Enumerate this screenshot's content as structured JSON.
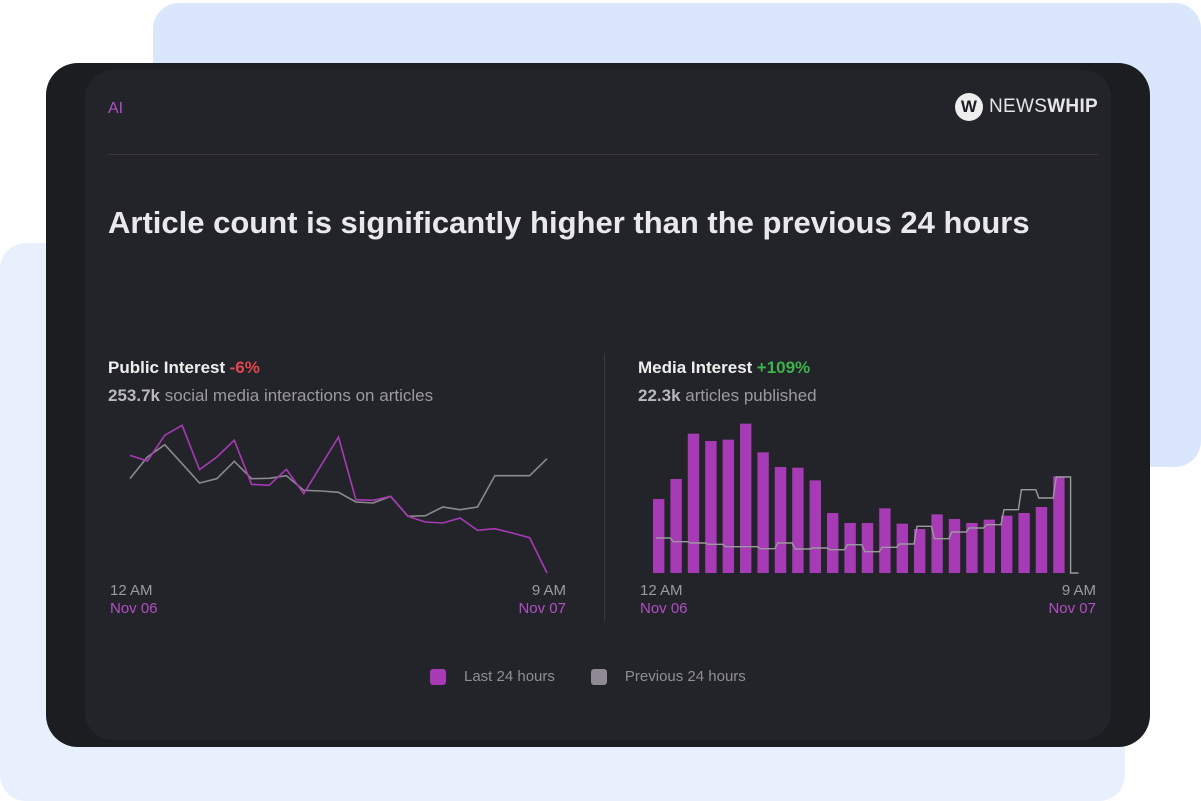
{
  "header": {
    "label": "AI",
    "brand": {
      "icon": "newswhip-w-logo",
      "text_light": "NEWS",
      "text_bold": "WHIP"
    }
  },
  "headline": "Article count is significantly higher than the previous 24 hours",
  "public_interest": {
    "title": "Public Interest",
    "change": "-6%",
    "value": "253.7k",
    "description": "social media interactions on articles"
  },
  "media_interest": {
    "title": "Media Interest",
    "change": "+109%",
    "value": "22.3k",
    "description": "articles published"
  },
  "colors": {
    "last": "#a73ab5",
    "previous": "#8a8a8e",
    "negative": "#e2464e",
    "positive": "#3bb54a"
  },
  "legend": {
    "last": "Last 24 hours",
    "previous": "Previous 24 hours"
  },
  "chart_data": [
    {
      "type": "line",
      "x_start": {
        "time": "12 AM",
        "date": "Nov 06"
      },
      "x_end": {
        "time": "9 AM",
        "date": "Nov 07"
      },
      "grid": false,
      "legend": "bottom",
      "series": [
        {
          "name": "Last 24 hours",
          "values": [
            365,
            348,
            425,
            455,
            322,
            360,
            410,
            278,
            275,
            323,
            250,
            335,
            420,
            232,
            230,
            242,
            182,
            165,
            162,
            177,
            140,
            145,
            132,
            118,
            12
          ]
        },
        {
          "name": "Previous 24 hours",
          "values": [
            295,
            360,
            397,
            340,
            282,
            295,
            347,
            295,
            296,
            304,
            260,
            258,
            254,
            225,
            222,
            242,
            182,
            184,
            210,
            202,
            210,
            304,
            304,
            304,
            355
          ]
        }
      ]
    },
    {
      "type": "bar",
      "x_start": {
        "time": "12 AM",
        "date": "Nov 06"
      },
      "x_end": {
        "time": "9 AM",
        "date": "Nov 07"
      },
      "grid": false,
      "legend": "bottom",
      "series": [
        {
          "name": "Last 24 hours",
          "values": [
            222,
            282,
            418,
            396,
            400,
            448,
            362,
            318,
            316,
            278,
            180,
            150,
            150,
            194,
            148,
            132,
            176,
            162,
            150,
            160,
            172,
            180,
            198,
            290
          ]
        },
        {
          "name": "Previous 24 hours",
          "values": [
            105,
            94,
            90,
            86,
            79,
            79,
            73,
            90,
            72,
            75,
            70,
            85,
            64,
            77,
            87,
            140,
            103,
            123,
            135,
            145,
            190,
            250,
            225,
            288
          ]
        }
      ]
    }
  ]
}
